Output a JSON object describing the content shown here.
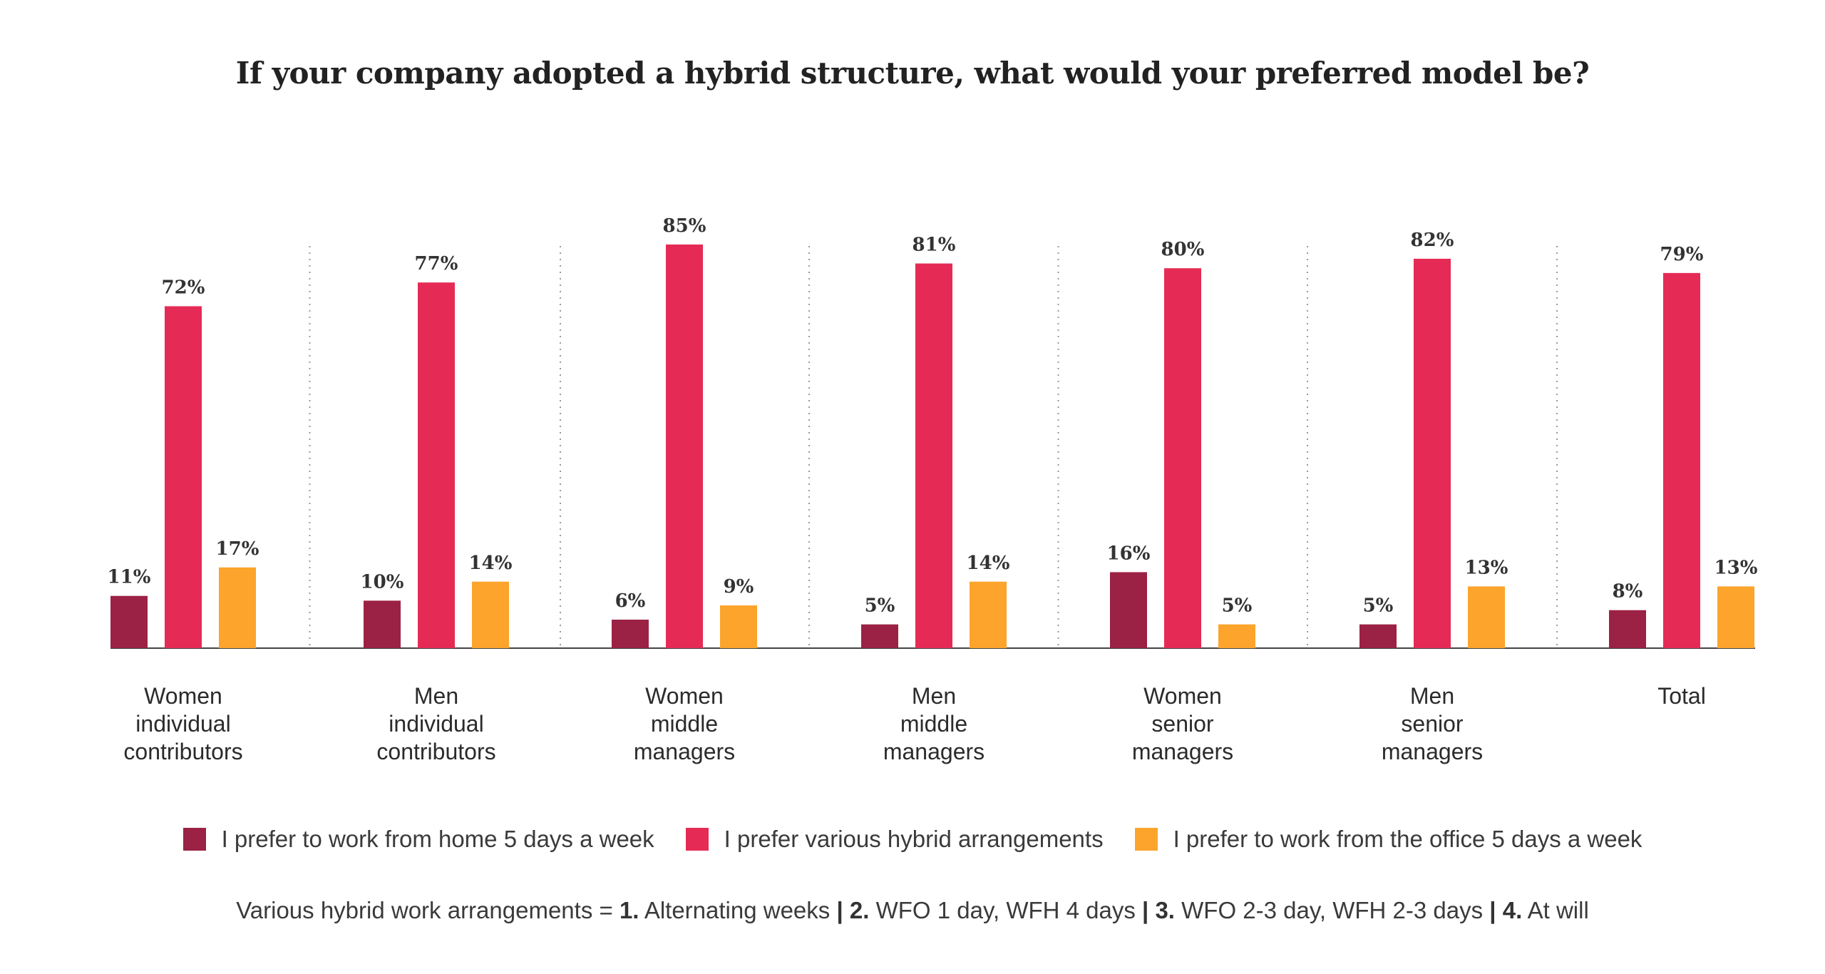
{
  "title": "If your company adopted a hybrid structure, what would your preferred model be?",
  "chart_data": {
    "type": "bar",
    "title": "If your company adopted a hybrid structure, what would your preferred model be?",
    "categories": [
      [
        "Women",
        "individual",
        "contributors"
      ],
      [
        "Men",
        "individual",
        "contributors"
      ],
      [
        "Women",
        "middle",
        "managers"
      ],
      [
        "Men",
        "middle",
        "managers"
      ],
      [
        "Women",
        "senior",
        "managers"
      ],
      [
        "Men",
        "senior",
        "managers"
      ],
      [
        "Total"
      ]
    ],
    "series": [
      {
        "name": "I prefer to work from home 5 days a week",
        "color": "#9b2245",
        "values": [
          11,
          10,
          6,
          5,
          16,
          5,
          8
        ]
      },
      {
        "name": "I prefer various hybrid arrangements",
        "color": "#e52b55",
        "values": [
          72,
          77,
          85,
          81,
          80,
          82,
          79
        ]
      },
      {
        "name": "I prefer to work from the office 5 days a week",
        "color": "#fca42b",
        "values": [
          17,
          14,
          9,
          14,
          5,
          13,
          13
        ]
      }
    ],
    "value_suffix": "%",
    "ylim": [
      0,
      100
    ],
    "grid": false,
    "group_separators": "dotted",
    "legend_position": "bottom"
  },
  "footnote": {
    "prefix": "Various hybrid work arrangements = ",
    "items": [
      {
        "num": "1.",
        "text": " Alternating weeks"
      },
      {
        "num": "2.",
        "text": " WFO 1 day, WFH 4 days"
      },
      {
        "num": "3.",
        "text": " WFO 2-3 day, WFH 2-3 days"
      },
      {
        "num": "4.",
        "text": " At will"
      }
    ],
    "separator": "|"
  }
}
